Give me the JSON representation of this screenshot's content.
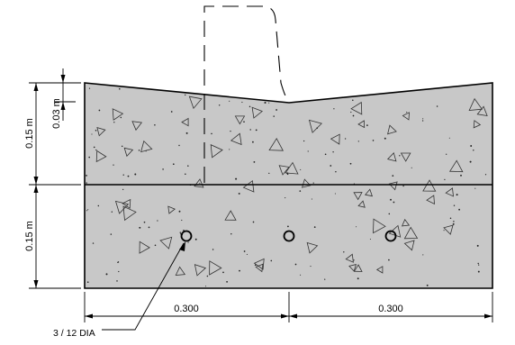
{
  "dimensions": {
    "bottom_left": "0.300",
    "bottom_right": "0.300",
    "left_upper_height": "0.15 m",
    "left_lower_height": "0.15 m",
    "slope_drop": "0.03 m"
  },
  "callout": {
    "rebar_label": "3 / 12 DIA"
  },
  "colors": {
    "concrete_fill": "#c8c8c8",
    "line": "#000000"
  }
}
